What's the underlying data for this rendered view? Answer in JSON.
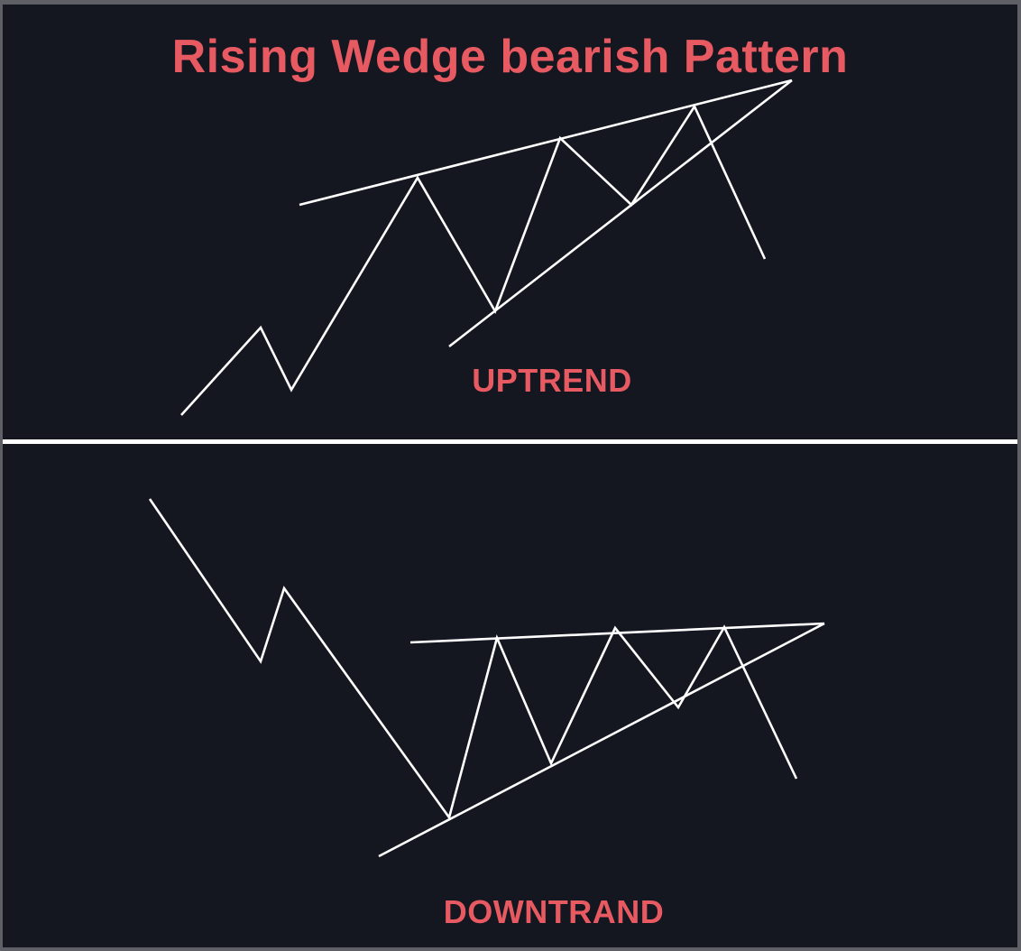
{
  "title": "Rising Wedge bearish Pattern",
  "panels": {
    "uptrend": {
      "label": "UPTREND"
    },
    "downtrend": {
      "label": "DOWNTRAND"
    }
  },
  "colors": {
    "background": "#141620",
    "frame": "#5e6066",
    "divider": "#ffffff",
    "line": "#ffffff",
    "text": "#e85a62"
  }
}
